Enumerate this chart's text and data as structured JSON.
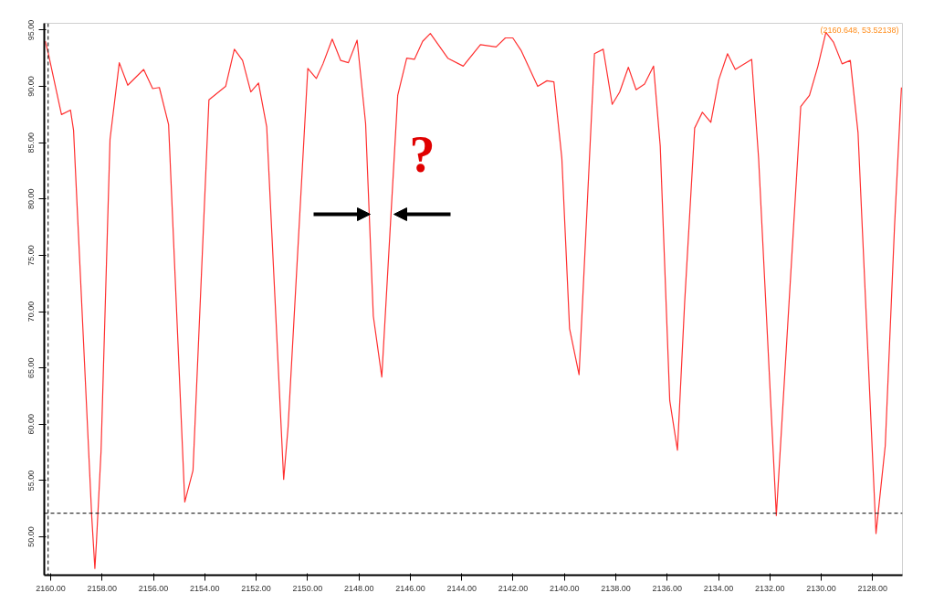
{
  "chart_data": {
    "type": "line",
    "x": [
      2160.21,
      2160.1,
      2159.58,
      2159.23,
      2159.11,
      2158.4,
      2158.28,
      2158.22,
      2158.04,
      2157.69,
      2157.33,
      2157.0,
      2156.38,
      2156.03,
      2155.77,
      2155.41,
      2154.78,
      2154.46,
      2153.84,
      2153.19,
      2152.85,
      2152.53,
      2152.21,
      2151.91,
      2151.59,
      2150.93,
      2150.76,
      2149.99,
      2149.66,
      2149.4,
      2149.04,
      2148.71,
      2148.41,
      2148.07,
      2147.74,
      2147.44,
      2147.11,
      2146.49,
      2146.14,
      2145.84,
      2145.52,
      2145.22,
      2144.54,
      2143.94,
      2143.27,
      2142.66,
      2142.3,
      2142.01,
      2141.69,
      2141.04,
      2140.68,
      2140.41,
      2140.1,
      2139.8,
      2139.43,
      2138.83,
      2138.49,
      2138.14,
      2137.85,
      2137.51,
      2137.21,
      2136.88,
      2136.53,
      2136.27,
      2135.9,
      2135.6,
      2135.32,
      2134.93,
      2134.63,
      2134.3,
      2133.99,
      2133.65,
      2133.35,
      2132.71,
      2132.44,
      2131.75,
      2130.8,
      2130.46,
      2130.13,
      2129.82,
      2129.52,
      2129.19,
      2128.87,
      2128.57,
      2127.87,
      2127.51,
      2127.15,
      2126.88
    ],
    "series": [
      {
        "color": "#ff3030",
        "values": [
          94.0,
          93.0,
          87.5,
          87.9,
          86.1,
          51.7,
          47.2,
          49.5,
          57.6,
          85.3,
          92.1,
          90.1,
          91.5,
          89.8,
          89.9,
          86.6,
          53.1,
          55.9,
          88.8,
          90.0,
          93.3,
          92.3,
          89.5,
          90.3,
          86.4,
          55.1,
          59.7,
          91.6,
          90.7,
          92.0,
          94.2,
          92.3,
          92.1,
          94.1,
          86.7,
          69.6,
          64.2,
          89.2,
          92.5,
          92.4,
          94.0,
          94.7,
          92.5,
          91.8,
          93.7,
          93.5,
          94.3,
          94.3,
          93.2,
          90.0,
          90.5,
          90.4,
          83.6,
          68.5,
          64.4,
          92.9,
          93.3,
          88.4,
          89.5,
          91.7,
          89.7,
          90.2,
          91.8,
          84.7,
          62.1,
          57.7,
          70.8,
          86.3,
          87.7,
          86.8,
          90.6,
          92.9,
          91.5,
          92.4,
          83.6,
          51.9,
          88.2,
          89.2,
          91.8,
          94.8,
          93.9,
          92.0,
          92.3,
          85.9,
          50.3,
          58.1,
          77.5,
          89.9
        ]
      }
    ],
    "xlim": [
      2160.25,
      2126.84
    ],
    "ylim": [
      46.6,
      95.6
    ],
    "xticks": [
      {
        "value": 2160,
        "label": "2160.00"
      },
      {
        "value": 2158,
        "label": "2158.00"
      },
      {
        "value": 2156,
        "label": "2156.00"
      },
      {
        "value": 2154,
        "label": "2154.00"
      },
      {
        "value": 2152,
        "label": "2152.00"
      },
      {
        "value": 2150,
        "label": "2150.00"
      },
      {
        "value": 2148,
        "label": "2148.00"
      },
      {
        "value": 2146,
        "label": "2146.00"
      },
      {
        "value": 2144,
        "label": "2144.00"
      },
      {
        "value": 2142,
        "label": "2142.00"
      },
      {
        "value": 2140,
        "label": "2140.00"
      },
      {
        "value": 2138,
        "label": "2138.00"
      },
      {
        "value": 2136,
        "label": "2136.00"
      },
      {
        "value": 2134,
        "label": "2134.00"
      },
      {
        "value": 2132,
        "label": "2132.00"
      },
      {
        "value": 2130,
        "label": "2130.00"
      },
      {
        "value": 2128,
        "label": "2128.00"
      }
    ],
    "yticks": [
      {
        "value": 50,
        "label": "50.00"
      },
      {
        "value": 55,
        "label": "55.00"
      },
      {
        "value": 60,
        "label": "60.00"
      },
      {
        "value": 65,
        "label": "65.00"
      },
      {
        "value": 70,
        "label": "70.00"
      },
      {
        "value": 75,
        "label": "75.00"
      },
      {
        "value": 80,
        "label": "80.00"
      },
      {
        "value": 85,
        "label": "85.00"
      },
      {
        "value": 90,
        "label": "90.00"
      },
      {
        "value": 95,
        "label": "95.00"
      }
    ],
    "ref_lines": [
      {
        "axis": "y",
        "value": 52.1,
        "color": "#000000",
        "line_style": "dashed"
      },
      {
        "axis": "x",
        "value": 2160.1,
        "color": "#000000",
        "line_style": "dashed"
      }
    ],
    "annotations": [
      "(2160.648, 53.52138)",
      "?"
    ],
    "grid": false,
    "marker": "none",
    "line_style": "solid"
  }
}
